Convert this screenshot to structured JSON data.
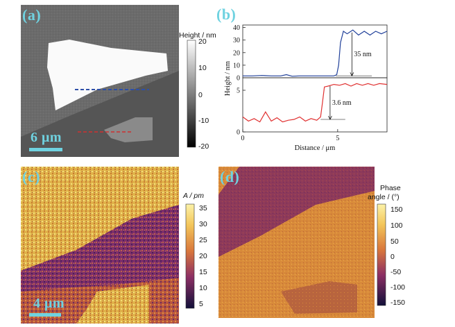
{
  "panels": {
    "a": {
      "label": "(a)",
      "scale_bar": "6 μm"
    },
    "b": {
      "label": "(b)"
    },
    "c": {
      "label": "(c)",
      "scale_bar": "4 μm"
    },
    "d": {
      "label": "(d)"
    }
  },
  "colorbars": {
    "height": {
      "title": "Height / nm",
      "ticks": [
        "20",
        "10",
        "0",
        "-10",
        "-20"
      ]
    },
    "amplitude": {
      "title": "A / pm",
      "ticks": [
        "35",
        "30",
        "25",
        "20",
        "15",
        "10",
        "5"
      ]
    },
    "phase": {
      "title_line1": "Phase",
      "title_line2": "angle / (°)",
      "ticks": [
        "150",
        "100",
        "50",
        "0",
        "-50",
        "-100",
        "-150"
      ]
    }
  },
  "chart_data": [
    {
      "type": "line",
      "panel": "b-top",
      "ylabel": "Height / nm",
      "ylim": [
        0,
        42
      ],
      "yticks": [
        "0",
        "10",
        "20",
        "30",
        "40"
      ],
      "xlim": [
        0,
        7.6
      ],
      "annotation": "35 nm",
      "series": [
        {
          "color": "#1f3f99",
          "x": [
            0,
            0.5,
            1.0,
            1.5,
            2.0,
            2.3,
            2.6,
            3.0,
            3.5,
            4.0,
            4.5,
            4.8,
            4.95,
            5.05,
            5.15,
            5.3,
            5.5,
            5.8,
            6.1,
            6.4,
            6.7,
            7.0,
            7.3,
            7.6
          ],
          "y": [
            1.5,
            1.5,
            1.8,
            1.5,
            1.5,
            2.5,
            1.2,
            1.5,
            1.5,
            1.5,
            1.5,
            1.5,
            2.5,
            10,
            28,
            37,
            35,
            38,
            34,
            37,
            34,
            37,
            35,
            37
          ]
        }
      ]
    },
    {
      "type": "line",
      "panel": "b-bottom",
      "ylim": [
        0,
        6.5
      ],
      "yticks": [
        "0",
        "5"
      ],
      "xlim": [
        0,
        7.6
      ],
      "xticks": [
        "0",
        "5"
      ],
      "xlabel": "Distance / μm",
      "annotation": "3.6 nm",
      "series": [
        {
          "color": "#e03030",
          "x": [
            0,
            0.3,
            0.6,
            0.9,
            1.2,
            1.5,
            1.8,
            2.1,
            2.4,
            2.7,
            3.0,
            3.3,
            3.6,
            3.9,
            4.1,
            4.2,
            4.3,
            4.5,
            4.8,
            5.1,
            5.4,
            5.7,
            6.0,
            6.3,
            6.6,
            6.9,
            7.2,
            7.6
          ],
          "y": [
            1.8,
            1.3,
            1.6,
            1.2,
            2.4,
            1.3,
            1.7,
            1.2,
            1.4,
            1.5,
            1.8,
            1.3,
            1.6,
            1.4,
            1.8,
            3.5,
            5.4,
            5.5,
            5.7,
            5.6,
            5.8,
            5.5,
            5.8,
            5.6,
            5.8,
            5.6,
            5.8,
            5.7
          ]
        }
      ]
    }
  ]
}
